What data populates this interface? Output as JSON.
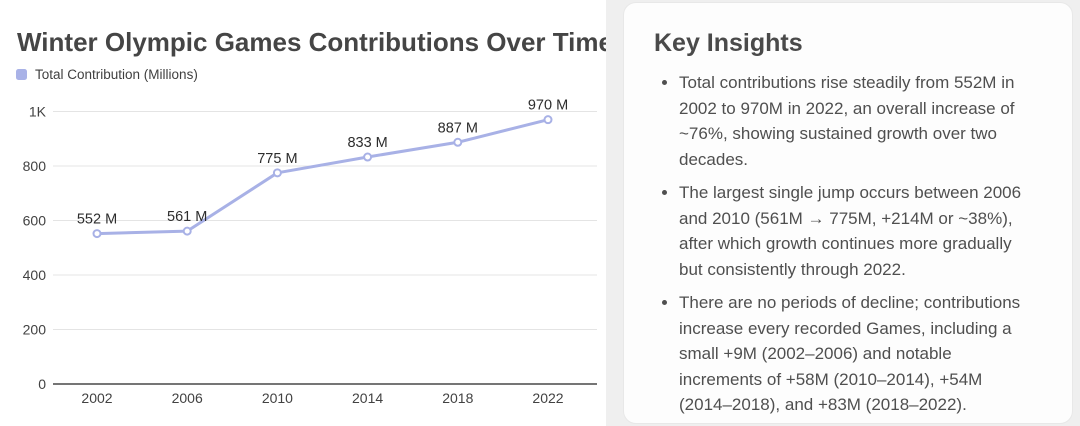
{
  "chart_panel": {
    "title": "Winter Olympic Games Contributions Over Time",
    "legend": {
      "label": "Total Contribution (Millions)",
      "swatch_color": "#a9b2e7"
    }
  },
  "chart_data": {
    "type": "line",
    "title": "Winter Olympic Games Contributions Over Time",
    "categories": [
      "2002",
      "2006",
      "2010",
      "2014",
      "2018",
      "2022"
    ],
    "series": [
      {
        "name": "Total Contribution (Millions)",
        "values": [
          552,
          561,
          775,
          833,
          887,
          970
        ],
        "point_labels": [
          "552 M",
          "561 M",
          "775 M",
          "833 M",
          "887 M",
          "970 M"
        ]
      }
    ],
    "y_ticks": [
      {
        "value": 0,
        "label": "0"
      },
      {
        "value": 200,
        "label": "200"
      },
      {
        "value": 400,
        "label": "400"
      },
      {
        "value": 600,
        "label": "600"
      },
      {
        "value": 800,
        "label": "800"
      },
      {
        "value": 1000,
        "label": "1K"
      }
    ],
    "ylim": [
      0,
      1050
    ],
    "grid": true,
    "legend_position": "top-left",
    "line_color": "#a8b1e6",
    "marker_fill": "#ffffff",
    "gridline_color": "#e4e4e4",
    "axis_line_color": "#757575",
    "tick_label_color": "#424242",
    "point_label_color": "#2d2d2d"
  },
  "insights_panel": {
    "heading": "Key Insights",
    "bullets": [
      "Total contributions rise steadily from 552M in 2002 to 970M in 2022, an overall increase of ~76%, showing sustained growth over two decades.",
      "The largest single jump occurs between 2006 and 2010 (561M → 775M, +214M or ~38%), after which growth continues more gradually but consistently through 2022.",
      "There are no periods of decline; contributions increase every recorded Games, including a small +9M (2002–2006) and notable increments of +58M (2010–2014), +54M (2014–2018), and +83M (2018–2022)."
    ]
  }
}
